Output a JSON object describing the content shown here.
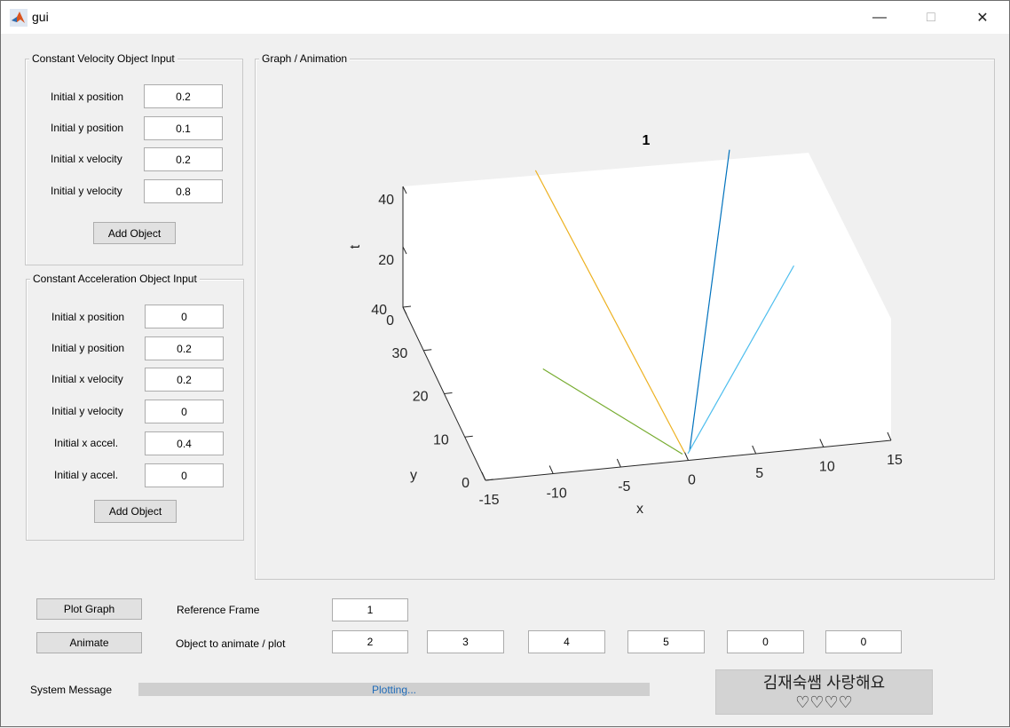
{
  "window": {
    "title": "gui",
    "minimize": "—",
    "maximize": "□",
    "close": "✕"
  },
  "cv_panel": {
    "title": "Constant Velocity Object Input",
    "fields": [
      {
        "label": "Initial x position",
        "value": "0.2"
      },
      {
        "label": "Initial y position",
        "value": "0.1"
      },
      {
        "label": "Initial x velocity",
        "value": "0.2"
      },
      {
        "label": "Initial y velocity",
        "value": "0.8"
      }
    ],
    "add_button": "Add Object"
  },
  "ca_panel": {
    "title": "Constant Acceleration Object Input",
    "fields": [
      {
        "label": "Initial x position",
        "value": "0"
      },
      {
        "label": "Initial y position",
        "value": "0.2"
      },
      {
        "label": "Initial x velocity",
        "value": "0.2"
      },
      {
        "label": "Initial y velocity",
        "value": "0"
      },
      {
        "label": "Initial x accel.",
        "value": "0.4"
      },
      {
        "label": "Initial y accel.",
        "value": "0"
      }
    ],
    "add_button": "Add Object"
  },
  "graph_panel": {
    "title": "Graph / Animation"
  },
  "controls": {
    "plot_button": "Plot Graph",
    "animate_button": "Animate",
    "reference_frame_label": "Reference Frame",
    "reference_frame_value": "1",
    "objects_label": "Object to animate / plot",
    "objects": [
      "2",
      "3",
      "4",
      "5",
      "0",
      "0"
    ]
  },
  "status": {
    "label": "System Message",
    "message": "Plotting..."
  },
  "love_box": {
    "line1": "김재숙쌤 사랑해요",
    "line2": "♡♡♡♡"
  },
  "chart_data": {
    "type": "line",
    "title": "1",
    "projection": "3d",
    "xlabel": "x",
    "ylabel": "y",
    "zlabel": "t",
    "xlim": [
      -15,
      15
    ],
    "ylim": [
      0,
      40
    ],
    "zlim": [
      0,
      40
    ],
    "xticks": [
      "-15",
      "-10",
      "-5",
      "0",
      "5",
      "10",
      "15"
    ],
    "yticks": [
      "0",
      "10",
      "20",
      "30",
      "40"
    ],
    "zticks": [
      "0",
      "20",
      "40"
    ],
    "grid": false,
    "series": [
      {
        "color": "#0072bd",
        "points": [
          [
            0.4,
            2,
            0
          ],
          [
            9,
            39,
            43
          ]
        ]
      },
      {
        "color": "#edb120",
        "points": [
          [
            0,
            1.8,
            0
          ],
          [
            -5.5,
            38,
            44
          ]
        ]
      },
      {
        "color": "#77ac30",
        "points": [
          [
            -0.2,
            1.5,
            0
          ],
          [
            -8,
            18,
            8
          ]
        ]
      },
      {
        "color": "#4dbeee",
        "points": [
          [
            0.2,
            1.5,
            0
          ],
          [
            13,
            34,
            10
          ]
        ]
      }
    ]
  }
}
